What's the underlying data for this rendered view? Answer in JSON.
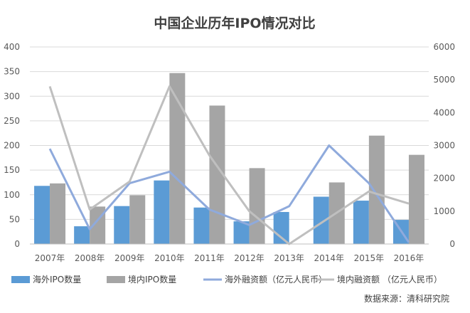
{
  "chart_data": {
    "type": "bar",
    "title": "中国企业历年IPO情况对比",
    "categories": [
      "2007年",
      "2008年",
      "2009年",
      "2010年",
      "2011年",
      "2012年",
      "2013年",
      "2014年",
      "2015年",
      "2016年"
    ],
    "series": [
      {
        "name": "海外IPO数量",
        "type": "bar",
        "axis": "left",
        "color": "#5B9BD5",
        "values": [
          118,
          36,
          77,
          129,
          74,
          46,
          65,
          96,
          88,
          49
        ]
      },
      {
        "name": "境内IPO数量",
        "type": "bar",
        "axis": "left",
        "color": "#A5A5A5",
        "values": [
          123,
          76,
          99,
          347,
          281,
          154,
          0,
          125,
          220,
          181
        ]
      },
      {
        "name": "海外融资额（亿元人民币）",
        "type": "line",
        "axis": "right",
        "color": "#8FAADC",
        "values": [
          2900,
          450,
          1850,
          2200,
          1050,
          580,
          1150,
          3000,
          1850,
          50
        ]
      },
      {
        "name": "境内融资额 （亿元人民币）",
        "type": "line",
        "axis": "right",
        "color": "#BFBFBF",
        "values": [
          4800,
          1050,
          1900,
          4800,
          2700,
          1000,
          0,
          800,
          1600,
          1230
        ]
      }
    ],
    "y_left": {
      "min": 0,
      "max": 400,
      "ticks": [
        "0",
        "50",
        "100",
        "150",
        "200",
        "250",
        "300",
        "350",
        "400"
      ]
    },
    "y_right": {
      "min": 0,
      "max": 6000,
      "ticks": [
        "0",
        "1000",
        "2000",
        "3000",
        "4000",
        "5000",
        "6000"
      ]
    },
    "grid": true,
    "legend_position": "bottom",
    "source_note": "数据来源：清科研究院"
  }
}
